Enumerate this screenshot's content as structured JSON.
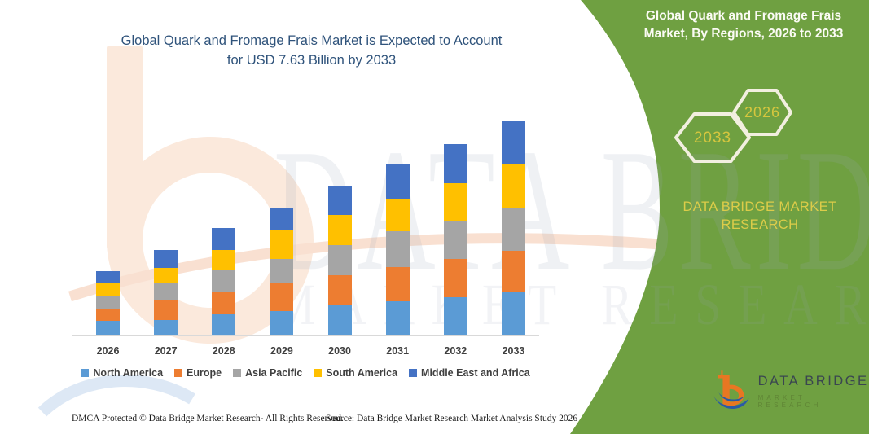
{
  "left_panel": {
    "title_line1": "Global Quark and Fromage Frais Market is Expected to Account",
    "title_line2": "for USD 7.63 Billion by 2033"
  },
  "right_panel": {
    "title_line1": "Global Quark and Fromage Frais",
    "title_line2": "Market, By Regions, 2026 to 2033",
    "hexagon_labels": [
      "2033",
      "2026"
    ],
    "brand_line1": "DATA BRIDGE MARKET",
    "brand_line2": "RESEARCH",
    "background_color": "#6FA041",
    "accent_text_color": "#D6C63E"
  },
  "chart_data": {
    "type": "bar",
    "stacked": true,
    "title": "Global Quark and Fromage Frais Market is Expected to Account for USD 7.63 Billion by 2033",
    "unit": "USD Billion",
    "note": "values estimated from bar heights; total for 2033 = 7.63 USD Billion",
    "categories": [
      "2026",
      "2027",
      "2028",
      "2029",
      "2030",
      "2031",
      "2032",
      "2033"
    ],
    "series": [
      {
        "name": "North America",
        "color": "#5B9BD5",
        "values": [
          0.52,
          0.55,
          0.74,
          0.88,
          1.07,
          1.23,
          1.36,
          1.55
        ]
      },
      {
        "name": "Europe",
        "color": "#ED7D31",
        "values": [
          0.44,
          0.74,
          0.83,
          0.98,
          1.07,
          1.2,
          1.36,
          1.46
        ]
      },
      {
        "name": "Asia Pacific",
        "color": "#A5A5A5",
        "values": [
          0.45,
          0.57,
          0.75,
          0.87,
          1.08,
          1.27,
          1.36,
          1.55
        ]
      },
      {
        "name": "South America",
        "color": "#FFC000",
        "values": [
          0.45,
          0.55,
          0.74,
          1.0,
          1.07,
          1.17,
          1.34,
          1.53
        ]
      },
      {
        "name": "Middle East and Africa",
        "color": "#4472C4",
        "values": [
          0.43,
          0.64,
          0.78,
          0.82,
          1.04,
          1.21,
          1.41,
          1.54
        ]
      }
    ],
    "totals": [
      2.29,
      3.05,
      3.84,
      4.55,
      5.33,
      6.08,
      6.83,
      7.63
    ],
    "ylim": [
      0,
      7.63
    ],
    "y_axis_visible": false,
    "grid": false,
    "legend_position": "bottom"
  },
  "watermark": {
    "line1": "DATA BRIDGE",
    "line2": "MARKET RESEARCH"
  },
  "footer": {
    "left": "DMCA Protected © Data Bridge Market Research-  All Rights Reserved.",
    "right": "Source: Data Bridge Market Research  Market Analysis Study 2026"
  },
  "logo": {
    "name": "DATA BRIDGE",
    "subname": "MARKET RESEARCH",
    "orange": "#E87722",
    "blue": "#2B5AA5"
  }
}
